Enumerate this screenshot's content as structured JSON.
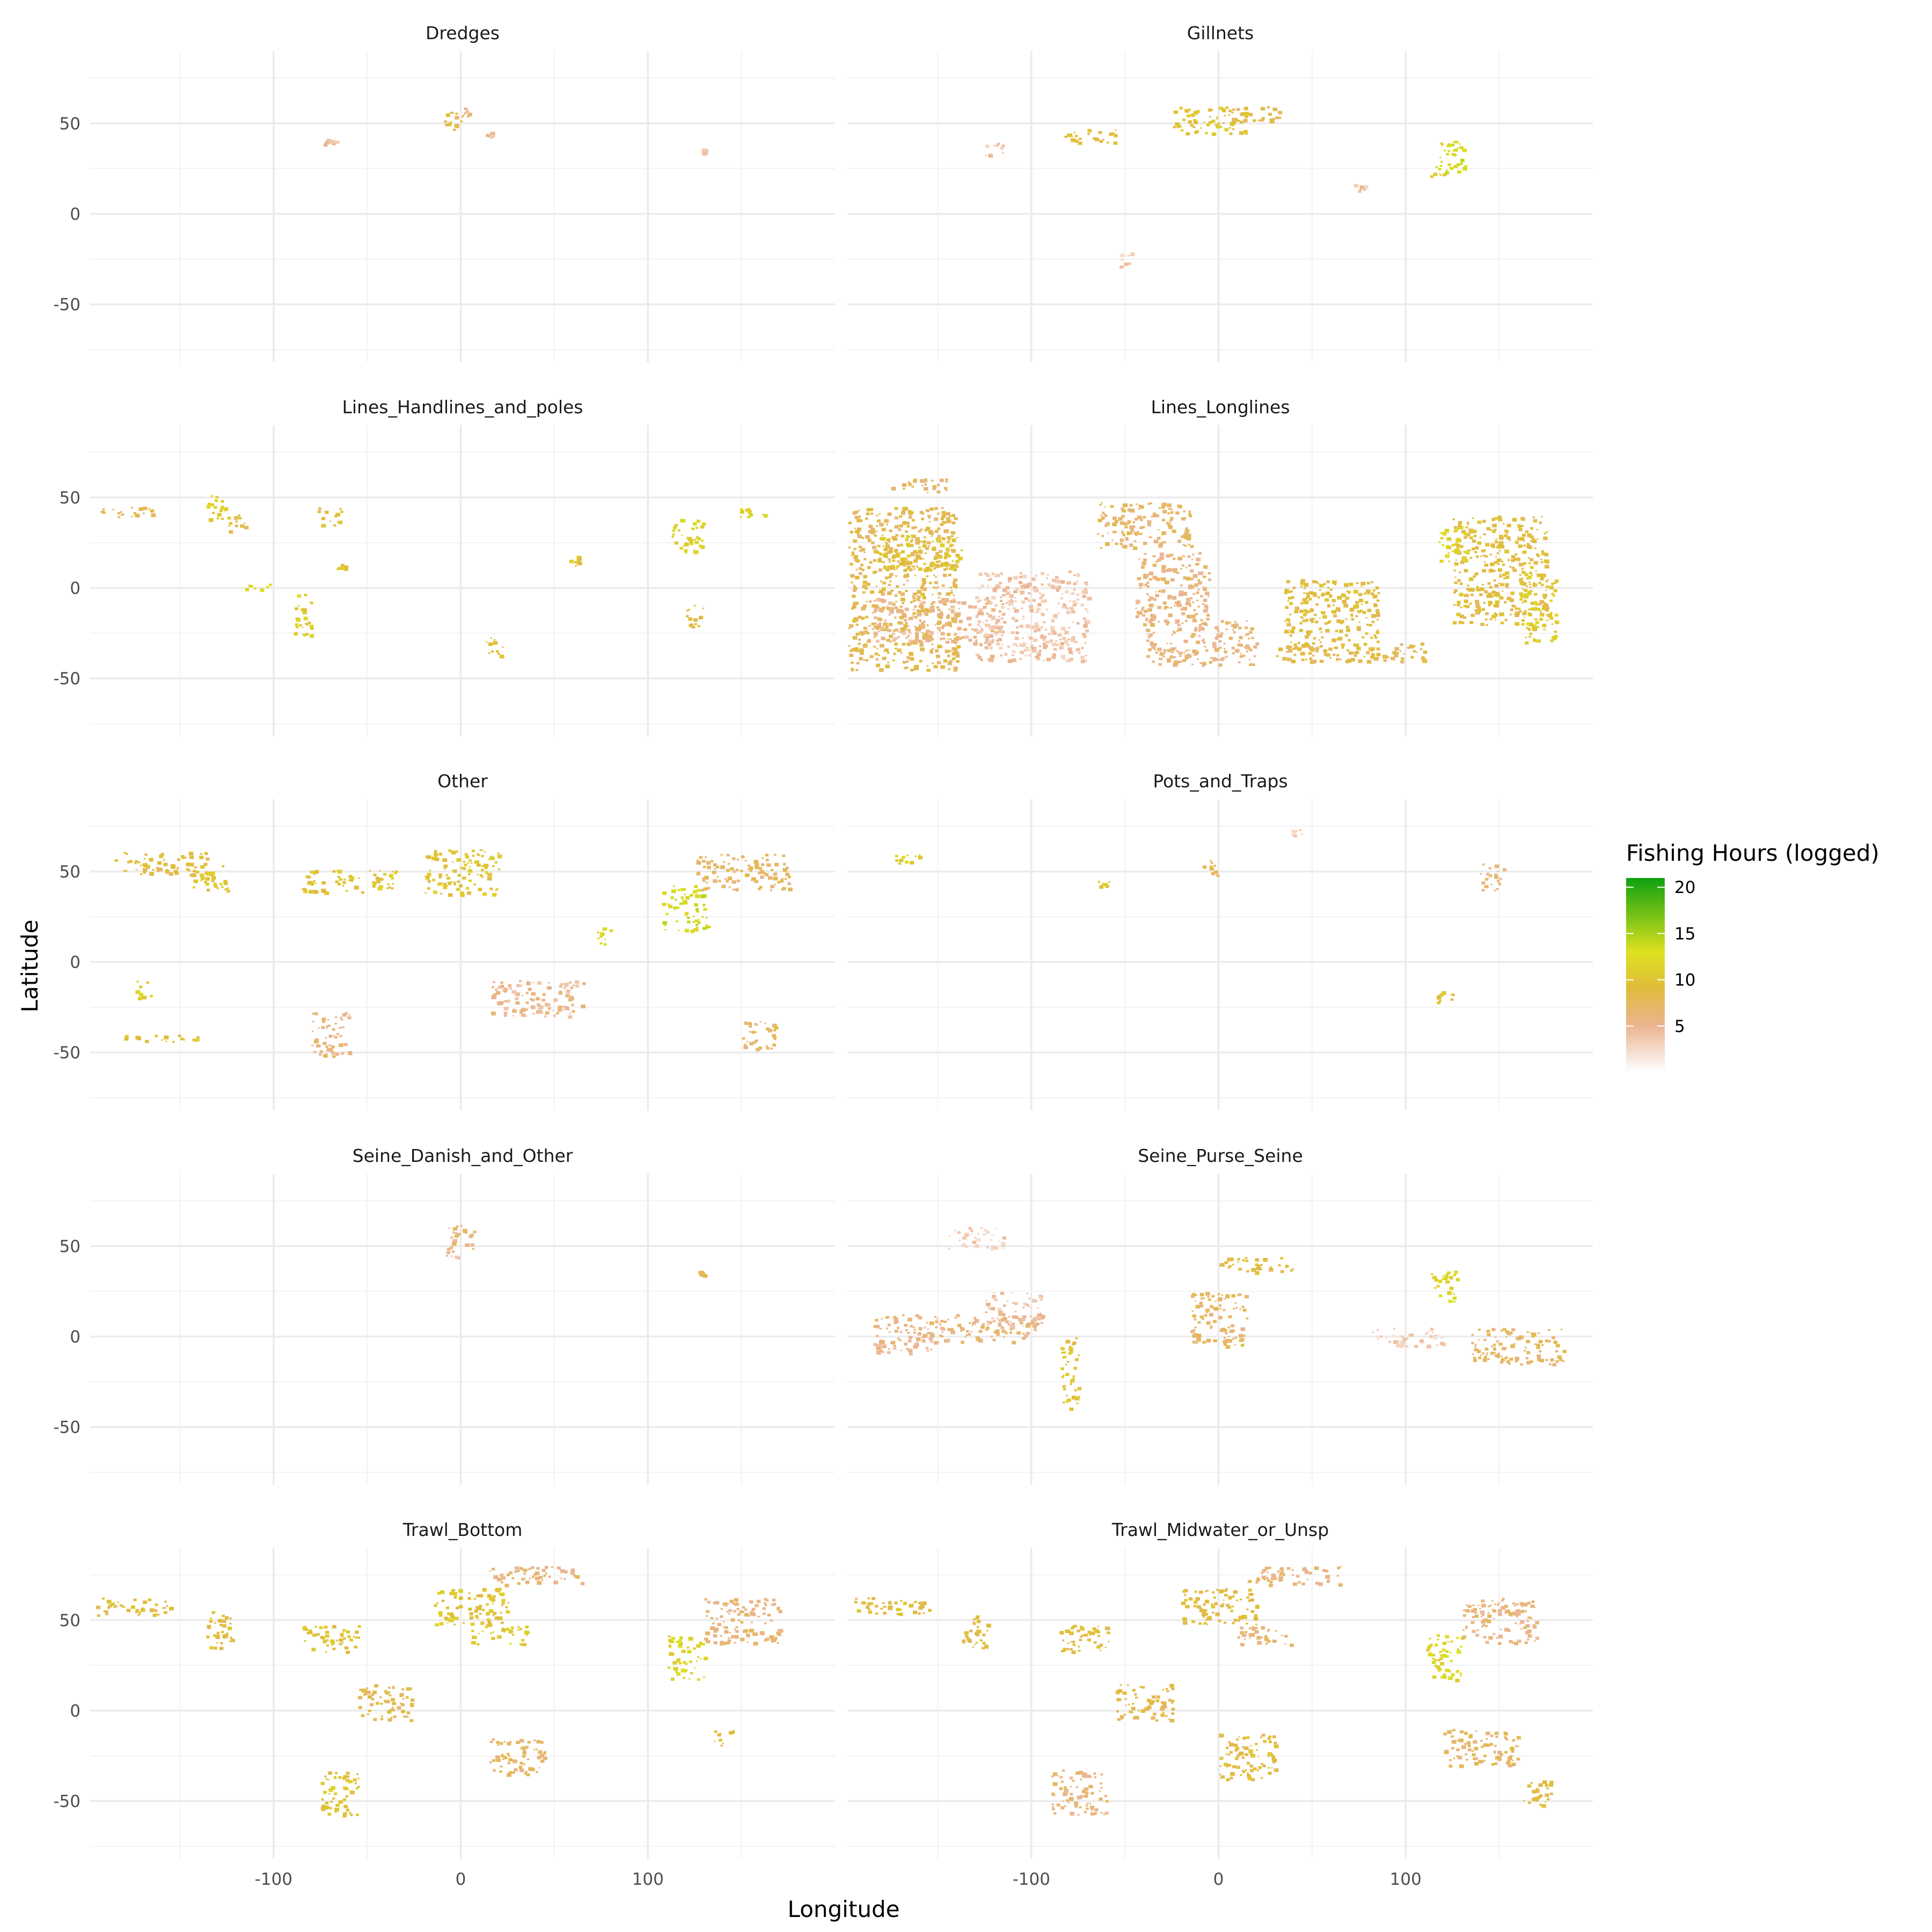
{
  "chart_data": {
    "type": "heatmap",
    "subtype": "faceted geographic raster map",
    "xlabel": "Longitude",
    "ylabel": "Latitude",
    "xlim": [
      -198,
      200
    ],
    "ylim": [
      -82,
      90
    ],
    "x_ticks": [
      -100,
      0,
      100
    ],
    "x_minor_gridlines": [
      -150,
      -50,
      50,
      150
    ],
    "y_ticks": [
      50,
      0,
      -50
    ],
    "y_minor_gridlines": [
      75,
      25,
      -25,
      -75
    ],
    "grid": true,
    "facet_layout": {
      "ncol": 2,
      "nrow": 5
    },
    "legend": {
      "title": "Fishing Hours (logged)",
      "position": "right",
      "breaks": [
        5,
        10,
        15,
        20
      ],
      "range": [
        0,
        21
      ],
      "colors": [
        {
          "value": 0,
          "color": "#ffffff"
        },
        {
          "value": 5,
          "color": "#ebb492"
        },
        {
          "value": 9,
          "color": "#e0bb3c"
        },
        {
          "value": 13,
          "color": "#dde11e"
        },
        {
          "value": 21,
          "color": "#0fa10f"
        }
      ]
    },
    "facets": [
      {
        "name": "Dredges",
        "regions": [
          {
            "lon": -5,
            "lat": 52,
            "w": 10,
            "h": 12,
            "value": 8
          },
          {
            "lon": 2,
            "lat": 56,
            "w": 6,
            "h": 6,
            "value": 6
          },
          {
            "lon": -70,
            "lat": 40,
            "w": 8,
            "h": 4,
            "value": 5
          },
          {
            "lon": 15,
            "lat": 44,
            "w": 4,
            "h": 4,
            "value": 4
          },
          {
            "lon": 130,
            "lat": 35,
            "w": 3,
            "h": 3,
            "value": 4
          }
        ]
      },
      {
        "name": "Gillnets",
        "regions": [
          {
            "lon": -5,
            "lat": 52,
            "w": 40,
            "h": 15,
            "value": 10
          },
          {
            "lon": 20,
            "lat": 56,
            "w": 30,
            "h": 8,
            "value": 8
          },
          {
            "lon": -70,
            "lat": 43,
            "w": 30,
            "h": 8,
            "value": 9
          },
          {
            "lon": 125,
            "lat": 32,
            "w": 14,
            "h": 18,
            "value": 13
          },
          {
            "lon": 118,
            "lat": 24,
            "w": 10,
            "h": 6,
            "value": 12
          },
          {
            "lon": 125,
            "lat": 38,
            "w": 8,
            "h": 6,
            "value": 13
          },
          {
            "lon": -120,
            "lat": 36,
            "w": 10,
            "h": 8,
            "value": 4
          },
          {
            "lon": -50,
            "lat": -25,
            "w": 6,
            "h": 8,
            "value": 3
          },
          {
            "lon": 75,
            "lat": 15,
            "w": 6,
            "h": 6,
            "value": 4
          }
        ]
      },
      {
        "name": "Lines_Handlines_and_poles",
        "regions": [
          {
            "lon": -130,
            "lat": 45,
            "w": 12,
            "h": 14,
            "value": 11
          },
          {
            "lon": -120,
            "lat": 36,
            "w": 10,
            "h": 10,
            "value": 9
          },
          {
            "lon": -110,
            "lat": 1,
            "w": 16,
            "h": 3,
            "value": 12
          },
          {
            "lon": -85,
            "lat": -15,
            "w": 10,
            "h": 25,
            "value": 11
          },
          {
            "lon": -70,
            "lat": 40,
            "w": 14,
            "h": 10,
            "value": 9
          },
          {
            "lon": -180,
            "lat": 42,
            "w": 30,
            "h": 6,
            "value": 8
          },
          {
            "lon": 120,
            "lat": 30,
            "w": 18,
            "h": 20,
            "value": 11
          },
          {
            "lon": 155,
            "lat": 42,
            "w": 16,
            "h": 6,
            "value": 12
          },
          {
            "lon": 18,
            "lat": -32,
            "w": 10,
            "h": 10,
            "value": 9
          },
          {
            "lon": 60,
            "lat": 15,
            "w": 6,
            "h": 6,
            "value": 10
          },
          {
            "lon": 125,
            "lat": -15,
            "w": 10,
            "h": 12,
            "value": 9
          },
          {
            "lon": -65,
            "lat": 12,
            "w": 6,
            "h": 3,
            "value": 10
          }
        ]
      },
      {
        "name": "Lines_Longlines",
        "regions": [
          {
            "lon": -170,
            "lat": 0,
            "w": 60,
            "h": 90,
            "value": 8
          },
          {
            "lon": -160,
            "lat": 20,
            "w": 45,
            "h": 20,
            "value": 10
          },
          {
            "lon": -150,
            "lat": -18,
            "w": 70,
            "h": 25,
            "value": 5
          },
          {
            "lon": -40,
            "lat": 35,
            "w": 50,
            "h": 25,
            "value": 7
          },
          {
            "lon": -25,
            "lat": 0,
            "w": 40,
            "h": 40,
            "value": 6
          },
          {
            "lon": -10,
            "lat": -30,
            "w": 60,
            "h": 25,
            "value": 6
          },
          {
            "lon": 60,
            "lat": -15,
            "w": 50,
            "h": 40,
            "value": 9
          },
          {
            "lon": 70,
            "lat": -35,
            "w": 80,
            "h": 10,
            "value": 8
          },
          {
            "lon": 150,
            "lat": 10,
            "w": 50,
            "h": 60,
            "value": 9
          },
          {
            "lon": 170,
            "lat": -10,
            "w": 20,
            "h": 40,
            "value": 11
          },
          {
            "lon": 125,
            "lat": 25,
            "w": 15,
            "h": 20,
            "value": 12
          },
          {
            "lon": -160,
            "lat": 57,
            "w": 30,
            "h": 8,
            "value": 7
          },
          {
            "lon": -100,
            "lat": -15,
            "w": 60,
            "h": 50,
            "value": 4
          }
        ]
      },
      {
        "name": "Other",
        "regions": [
          {
            "lon": -160,
            "lat": 55,
            "w": 50,
            "h": 12,
            "value": 9
          },
          {
            "lon": -135,
            "lat": 47,
            "w": 20,
            "h": 15,
            "value": 10
          },
          {
            "lon": -60,
            "lat": 45,
            "w": 50,
            "h": 12,
            "value": 10
          },
          {
            "lon": 0,
            "lat": 50,
            "w": 40,
            "h": 25,
            "value": 10
          },
          {
            "lon": 120,
            "lat": 30,
            "w": 25,
            "h": 25,
            "value": 13
          },
          {
            "lon": 150,
            "lat": 50,
            "w": 50,
            "h": 20,
            "value": 7
          },
          {
            "lon": -160,
            "lat": -42,
            "w": 40,
            "h": 4,
            "value": 10
          },
          {
            "lon": -70,
            "lat": -40,
            "w": 20,
            "h": 25,
            "value": 6
          },
          {
            "lon": 40,
            "lat": -20,
            "w": 50,
            "h": 20,
            "value": 5
          },
          {
            "lon": 160,
            "lat": -40,
            "w": 20,
            "h": 15,
            "value": 7
          },
          {
            "lon": -170,
            "lat": -15,
            "w": 8,
            "h": 10,
            "value": 11
          },
          {
            "lon": 75,
            "lat": 15,
            "w": 10,
            "h": 10,
            "value": 12
          }
        ]
      },
      {
        "name": "Pots_and_Traps",
        "regions": [
          {
            "lon": -165,
            "lat": 57,
            "w": 20,
            "h": 5,
            "value": 11
          },
          {
            "lon": -60,
            "lat": 44,
            "w": 10,
            "h": 4,
            "value": 10
          },
          {
            "lon": -5,
            "lat": 53,
            "w": 8,
            "h": 12,
            "value": 8
          },
          {
            "lon": 145,
            "lat": 47,
            "w": 14,
            "h": 16,
            "value": 6
          },
          {
            "lon": 120,
            "lat": -18,
            "w": 10,
            "h": 8,
            "value": 9
          },
          {
            "lon": 40,
            "lat": 72,
            "w": 10,
            "h": 3,
            "value": 3
          }
        ]
      },
      {
        "name": "Seine_Danish_and_Other",
        "regions": [
          {
            "lon": 0,
            "lat": 55,
            "w": 14,
            "h": 14,
            "value": 6
          },
          {
            "lon": -5,
            "lat": 47,
            "w": 6,
            "h": 6,
            "value": 5
          },
          {
            "lon": 128,
            "lat": 35,
            "w": 4,
            "h": 3,
            "value": 8
          }
        ]
      },
      {
        "name": "Seine_Purse_Seine",
        "regions": [
          {
            "lon": -140,
            "lat": 5,
            "w": 90,
            "h": 15,
            "value": 6
          },
          {
            "lon": -110,
            "lat": 15,
            "w": 30,
            "h": 20,
            "value": 4
          },
          {
            "lon": -165,
            "lat": -5,
            "w": 40,
            "h": 8,
            "value": 5
          },
          {
            "lon": -130,
            "lat": 55,
            "w": 30,
            "h": 12,
            "value": 3
          },
          {
            "lon": -80,
            "lat": -20,
            "w": 10,
            "h": 40,
            "value": 10
          },
          {
            "lon": 0,
            "lat": 10,
            "w": 30,
            "h": 30,
            "value": 7
          },
          {
            "lon": 20,
            "lat": 40,
            "w": 40,
            "h": 8,
            "value": 9
          },
          {
            "lon": 120,
            "lat": 28,
            "w": 14,
            "h": 18,
            "value": 12
          },
          {
            "lon": 160,
            "lat": -5,
            "w": 50,
            "h": 20,
            "value": 7
          },
          {
            "lon": 100,
            "lat": 0,
            "w": 40,
            "h": 10,
            "value": 3
          }
        ]
      },
      {
        "name": "Trawl_Bottom",
        "regions": [
          {
            "lon": -175,
            "lat": 58,
            "w": 40,
            "h": 10,
            "value": 9
          },
          {
            "lon": -130,
            "lat": 45,
            "w": 15,
            "h": 20,
            "value": 9
          },
          {
            "lon": -70,
            "lat": 40,
            "w": 30,
            "h": 15,
            "value": 10
          },
          {
            "lon": 5,
            "lat": 58,
            "w": 40,
            "h": 20,
            "value": 10
          },
          {
            "lon": 40,
            "lat": 75,
            "w": 50,
            "h": 10,
            "value": 6
          },
          {
            "lon": 20,
            "lat": 42,
            "w": 30,
            "h": 10,
            "value": 11
          },
          {
            "lon": 120,
            "lat": 30,
            "w": 20,
            "h": 25,
            "value": 12
          },
          {
            "lon": 150,
            "lat": 50,
            "w": 40,
            "h": 25,
            "value": 6
          },
          {
            "lon": -65,
            "lat": -45,
            "w": 20,
            "h": 25,
            "value": 10
          },
          {
            "lon": 30,
            "lat": -25,
            "w": 30,
            "h": 20,
            "value": 7
          },
          {
            "lon": 140,
            "lat": -15,
            "w": 10,
            "h": 10,
            "value": 9
          },
          {
            "lon": -40,
            "lat": 5,
            "w": 30,
            "h": 20,
            "value": 8
          }
        ]
      },
      {
        "name": "Trawl_Midwater_or_Unsp",
        "regions": [
          {
            "lon": -175,
            "lat": 58,
            "w": 40,
            "h": 10,
            "value": 9
          },
          {
            "lon": -130,
            "lat": 45,
            "w": 15,
            "h": 20,
            "value": 9
          },
          {
            "lon": -70,
            "lat": 40,
            "w": 30,
            "h": 15,
            "value": 9
          },
          {
            "lon": 0,
            "lat": 58,
            "w": 40,
            "h": 20,
            "value": 9
          },
          {
            "lon": 40,
            "lat": 75,
            "w": 50,
            "h": 10,
            "value": 6
          },
          {
            "lon": 25,
            "lat": 42,
            "w": 30,
            "h": 10,
            "value": 6
          },
          {
            "lon": 120,
            "lat": 30,
            "w": 20,
            "h": 25,
            "value": 12
          },
          {
            "lon": 150,
            "lat": 50,
            "w": 40,
            "h": 25,
            "value": 6
          },
          {
            "lon": -75,
            "lat": -45,
            "w": 30,
            "h": 25,
            "value": 6
          },
          {
            "lon": 15,
            "lat": -25,
            "w": 30,
            "h": 25,
            "value": 9
          },
          {
            "lon": 140,
            "lat": -20,
            "w": 40,
            "h": 20,
            "value": 7
          },
          {
            "lon": 170,
            "lat": -45,
            "w": 15,
            "h": 15,
            "value": 9
          },
          {
            "lon": -40,
            "lat": 5,
            "w": 30,
            "h": 20,
            "value": 8
          }
        ]
      }
    ]
  }
}
